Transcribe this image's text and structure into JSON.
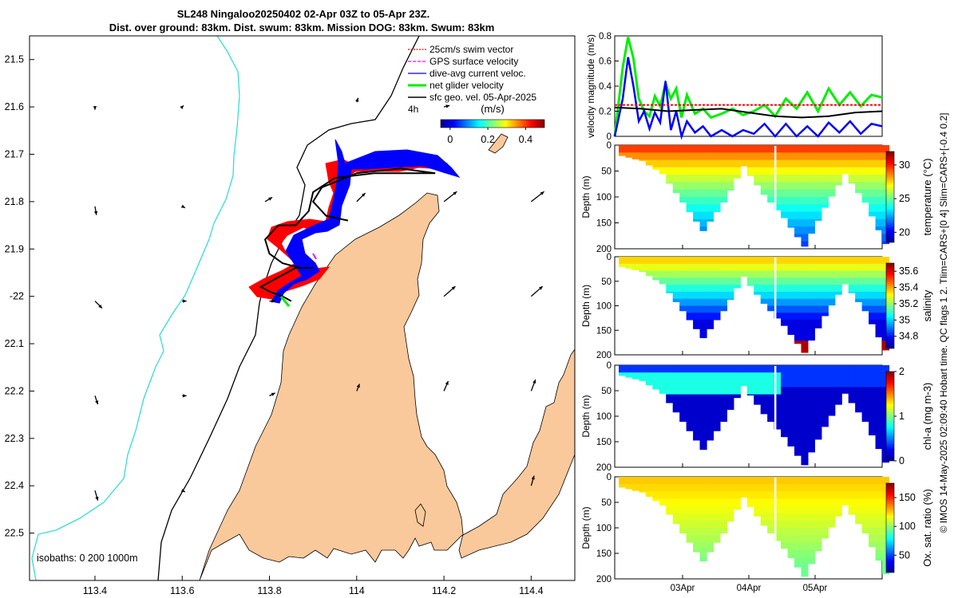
{
  "title": {
    "line1": "SL248 Ningaloo20250402 02-Apr 03Z to 05-Apr 23Z.",
    "line2": "Dist. over ground: 83km. Dist. swum: 83km. Mission DOG: 83km. Swum: 83km"
  },
  "colors": {
    "land": "#f9c99b",
    "swim_vector": "#ff0000",
    "gps_velocity": "#ff00ff",
    "dive_avg": "#0000ff",
    "net_glider": "#00ee00",
    "sfc_geo": "#000000",
    "isobath_0": "#000000",
    "isobath_200": "#000000",
    "isobath_1000": "#33dddd"
  },
  "chart_data": [
    {
      "type": "map",
      "name": "glider-track-map",
      "xlim": [
        113.25,
        114.5
      ],
      "ylim": [
        -22.6,
        -21.45
      ],
      "x_ticks": [
        113.4,
        113.6,
        113.8,
        114,
        114.2,
        114.4
      ],
      "x_tick_labels": [
        "113.4",
        "113.6",
        "113.8",
        "114",
        "114.2",
        "114.4"
      ],
      "y_ticks": [
        -21.5,
        -21.6,
        -21.7,
        -21.8,
        -21.9,
        -22,
        -22.1,
        -22.2,
        -22.3,
        -22.4,
        -22.5
      ],
      "y_tick_labels": [
        "21.5",
        "21.6",
        "21.7",
        "21.8",
        "21.9",
        "-22",
        "22.1",
        "22.2",
        "22.3",
        "22.4",
        "22.5"
      ],
      "legend": [
        {
          "label": "25cm/s swim vector",
          "color_key": "swim_vector"
        },
        {
          "label": "GPS surface velocity",
          "color_key": "gps_velocity"
        },
        {
          "label": "dive-avg current veloc.",
          "color_key": "dive_avg"
        },
        {
          "label": "net glider velocity",
          "color_key": "net_glider"
        },
        {
          "label": "sfc geo. vel. 05-Apr-2025",
          "color_key": "sfc_geo"
        }
      ],
      "legend_extra": "4h",
      "colorbar": {
        "label": "(m/s)",
        "ticks": [
          0,
          0.2,
          0.4
        ],
        "tick_labels": [
          "0",
          "0.2",
          "0.4"
        ],
        "range": [
          -0.05,
          0.5
        ],
        "colormap": "jet"
      },
      "isobath_label": "isobaths: 0   200  1000m",
      "glider_track": [
        [
          113.98,
          -21.84
        ],
        [
          113.93,
          -21.83
        ],
        [
          113.9,
          -21.8
        ],
        [
          113.92,
          -21.77
        ],
        [
          114.0,
          -21.74
        ],
        [
          114.1,
          -21.73
        ],
        [
          114.18,
          -21.74
        ],
        [
          114.04,
          -21.74
        ],
        [
          113.95,
          -21.75
        ],
        [
          113.9,
          -21.78
        ],
        [
          113.89,
          -21.82
        ],
        [
          113.86,
          -21.85
        ],
        [
          113.82,
          -21.85
        ],
        [
          113.79,
          -21.88
        ],
        [
          113.8,
          -21.91
        ],
        [
          113.83,
          -21.93
        ],
        [
          113.87,
          -21.94
        ],
        [
          113.9,
          -21.94
        ],
        [
          113.86,
          -21.94
        ],
        [
          113.82,
          -21.96
        ],
        [
          113.78,
          -21.98
        ],
        [
          113.8,
          -21.99
        ],
        [
          113.83,
          -22.0
        ],
        [
          113.85,
          -22.01
        ]
      ],
      "geo_vectors": [
        {
          "lon": 113.4,
          "lat": -21.6,
          "u": 0.0,
          "v": -0.02
        },
        {
          "lon": 113.4,
          "lat": -21.81,
          "u": 0.01,
          "v": -0.06
        },
        {
          "lon": 113.4,
          "lat": -22.01,
          "u": 0.05,
          "v": -0.05
        },
        {
          "lon": 113.4,
          "lat": -22.21,
          "u": 0.02,
          "v": -0.06
        },
        {
          "lon": 113.4,
          "lat": -22.41,
          "u": 0.02,
          "v": -0.07
        },
        {
          "lon": 113.6,
          "lat": -21.6,
          "u": 0.01,
          "v": 0.01
        },
        {
          "lon": 113.6,
          "lat": -21.81,
          "u": 0.02,
          "v": -0.01
        },
        {
          "lon": 113.6,
          "lat": -22.01,
          "u": 0.03,
          "v": 0.0
        },
        {
          "lon": 113.6,
          "lat": -22.21,
          "u": 0.03,
          "v": 0.0
        },
        {
          "lon": 113.6,
          "lat": -22.41,
          "u": 0.02,
          "v": -0.01
        },
        {
          "lon": 113.79,
          "lat": -21.8,
          "u": 0.05,
          "v": 0.03
        },
        {
          "lon": 113.8,
          "lat": -22.01,
          "u": 0.04,
          "v": 0.0
        },
        {
          "lon": 113.8,
          "lat": -22.21,
          "u": 0.04,
          "v": 0.02
        },
        {
          "lon": 114.0,
          "lat": -21.59,
          "u": 0.01,
          "v": 0.03
        },
        {
          "lon": 114.0,
          "lat": -21.8,
          "u": 0.06,
          "v": 0.06
        },
        {
          "lon": 114.0,
          "lat": -22.2,
          "u": 0.02,
          "v": 0.05
        },
        {
          "lon": 114.2,
          "lat": -21.6,
          "u": 0.04,
          "v": 0.01
        },
        {
          "lon": 114.2,
          "lat": -21.8,
          "u": 0.09,
          "v": 0.07
        },
        {
          "lon": 114.2,
          "lat": -22.0,
          "u": 0.08,
          "v": 0.07
        },
        {
          "lon": 114.2,
          "lat": -22.2,
          "u": 0.03,
          "v": 0.07
        },
        {
          "lon": 114.4,
          "lat": -21.8,
          "u": 0.09,
          "v": 0.07
        },
        {
          "lon": 114.4,
          "lat": -22.0,
          "u": 0.08,
          "v": 0.07
        },
        {
          "lon": 114.4,
          "lat": -22.2,
          "u": 0.03,
          "v": 0.08
        },
        {
          "lon": 114.4,
          "lat": -22.4,
          "u": 0.02,
          "v": 0.07
        }
      ]
    },
    {
      "type": "line",
      "name": "velocity-magnitude",
      "ylabel": "velocity magnitude (m/s)",
      "ylim": [
        0,
        0.8
      ],
      "xlim": [
        0,
        100
      ],
      "y_ticks": [
        0,
        0.2,
        0.4,
        0.6,
        0.8
      ],
      "y_tick_labels": [
        "0",
        "0.2",
        "0.4",
        "0.6",
        "0.8"
      ],
      "series": [
        {
          "name": "net glider velocity",
          "color_key": "net_glider",
          "x": [
            0,
            3,
            5,
            7,
            9,
            11,
            13,
            15,
            17,
            19,
            21,
            23,
            25,
            27,
            30,
            33,
            36,
            40,
            44,
            48,
            52,
            56,
            60,
            64,
            68,
            72,
            76,
            80,
            84,
            88,
            92,
            96,
            100
          ],
          "values": [
            0.0,
            0.55,
            0.79,
            0.62,
            0.3,
            0.2,
            0.16,
            0.32,
            0.24,
            0.42,
            0.3,
            0.38,
            0.15,
            0.33,
            0.18,
            0.22,
            0.15,
            0.18,
            0.22,
            0.17,
            0.2,
            0.25,
            0.16,
            0.3,
            0.22,
            0.35,
            0.2,
            0.38,
            0.25,
            0.35,
            0.24,
            0.33,
            0.31
          ]
        },
        {
          "name": "dive-avg current veloc.",
          "color_key": "dive_avg",
          "x": [
            0,
            3,
            5,
            7,
            9,
            11,
            13,
            15,
            17,
            19,
            21,
            23,
            25,
            27,
            30,
            33,
            36,
            40,
            44,
            48,
            52,
            56,
            60,
            64,
            68,
            72,
            76,
            80,
            84,
            88,
            92,
            96,
            100
          ],
          "values": [
            0.0,
            0.3,
            0.63,
            0.4,
            0.12,
            0.2,
            0.06,
            0.19,
            0.11,
            0.44,
            0.05,
            0.2,
            0.0,
            0.12,
            0.03,
            0.08,
            0.0,
            0.05,
            0.0,
            0.05,
            0.02,
            0.1,
            0.0,
            0.1,
            0.0,
            0.08,
            0.0,
            0.11,
            0.03,
            0.12,
            0.02,
            0.1,
            0.08
          ]
        },
        {
          "name": "sfc geo. vel.",
          "color_key": "sfc_geo",
          "x": [
            0,
            10,
            20,
            30,
            40,
            50,
            60,
            70,
            80,
            90,
            100
          ],
          "values": [
            0.23,
            0.22,
            0.2,
            0.21,
            0.22,
            0.19,
            0.16,
            0.15,
            0.16,
            0.19,
            0.2
          ]
        },
        {
          "name": "25cm/s swim",
          "color_key": "swim_vector",
          "x": [
            0,
            100
          ],
          "values": [
            0.25,
            0.25
          ]
        }
      ]
    },
    {
      "type": "heatmap",
      "name": "temperature-section",
      "ylabel": "Depth (m)",
      "ylim": [
        200,
        0
      ],
      "y_ticks": [
        0,
        50,
        100,
        150,
        200
      ],
      "y_tick_labels": [
        "0",
        "50",
        "100",
        "150",
        "200"
      ],
      "cbar_label": "temperature (°C)",
      "cbar_ticks": [
        20,
        25,
        30
      ],
      "cbar_tick_labels": [
        "20",
        "25",
        "30"
      ],
      "cbar_range": [
        18.5,
        32
      ],
      "bottom_depths": [
        20,
        30,
        55,
        110,
        165,
        110,
        40,
        95,
        140,
        195,
        120,
        55,
        110,
        190
      ],
      "surface_value": 29.5,
      "bottom_value": 20.5
    },
    {
      "type": "heatmap",
      "name": "salinity-section",
      "ylabel": "Depth (m)",
      "ylim": [
        200,
        0
      ],
      "y_ticks": [
        0,
        50,
        100,
        150,
        200
      ],
      "y_tick_labels": [
        "0",
        "50",
        "100",
        "150",
        "200"
      ],
      "cbar_label": "salinity",
      "cbar_ticks": [
        34.8,
        35,
        35.2,
        35.4,
        35.6
      ],
      "cbar_tick_labels": [
        "34.8",
        "35",
        "35.2",
        "35.4",
        "35.6"
      ],
      "cbar_range": [
        34.65,
        35.7
      ],
      "bottom_depths": [
        20,
        30,
        55,
        110,
        165,
        110,
        40,
        95,
        140,
        195,
        120,
        55,
        110,
        190
      ],
      "surface_value": 35.35,
      "bottom_value": 34.75
    },
    {
      "type": "heatmap",
      "name": "chlorophyll-section",
      "ylabel": "Depth (m)",
      "ylim": [
        200,
        0
      ],
      "y_ticks": [
        0,
        50,
        100,
        150,
        200
      ],
      "y_tick_labels": [
        "0",
        "50",
        "100",
        "150",
        "200"
      ],
      "cbar_label": "chl-a (mg m-3)",
      "cbar_ticks": [
        0,
        1,
        2
      ],
      "cbar_tick_labels": [
        "0",
        "1",
        "2"
      ],
      "cbar_range": [
        0,
        2
      ],
      "bottom_depths": [
        20,
        30,
        55,
        110,
        165,
        110,
        40,
        95,
        140,
        195,
        120,
        55,
        110,
        190
      ],
      "surface_value": 0.3,
      "bottom_value": 0.15
    },
    {
      "type": "heatmap",
      "name": "oxygen-section",
      "ylabel": "Depth (m)",
      "ylim": [
        200,
        0
      ],
      "y_ticks": [
        0,
        50,
        100,
        150,
        200
      ],
      "y_tick_labels": [
        "0",
        "50",
        "100",
        "150",
        "200"
      ],
      "x_ticks": [
        3,
        4,
        5
      ],
      "x_tick_labels": [
        "03Apr",
        "04Apr",
        "05Apr"
      ],
      "cbar_label": "Ox. sat. ratio (%)",
      "cbar_ticks": [
        50,
        100,
        150
      ],
      "cbar_tick_labels": [
        "50",
        "100",
        "150"
      ],
      "cbar_range": [
        20,
        175
      ],
      "bottom_depths": [
        20,
        30,
        55,
        110,
        165,
        110,
        40,
        95,
        140,
        195,
        120,
        55,
        110,
        190
      ],
      "surface_value": 125,
      "bottom_value": 95
    }
  ],
  "side_note": "© IMOS 14-May-2025 02:09:40 Hobart time. QC flags 1  2. Tlim=CARS+[0 4] Slim=CARS+[-0.4 0.2]"
}
